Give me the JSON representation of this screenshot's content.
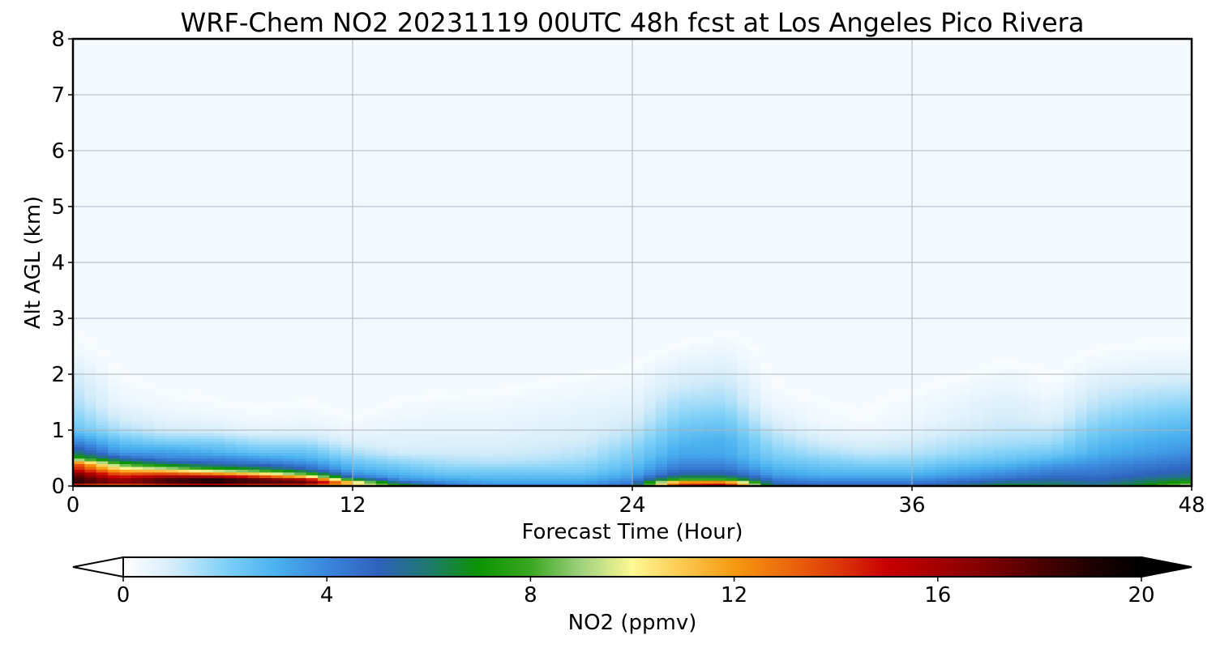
{
  "chart_data": {
    "type": "heatmap",
    "title": "WRF-Chem NO2  20231119 00UTC 48h fcst at Los Angeles Pico Rivera",
    "xlabel": "Forecast Time (Hour)",
    "ylabel": "Alt AGL (km)",
    "xlim": [
      0,
      48
    ],
    "ylim": [
      0,
      8
    ],
    "x_ticks": [
      "0",
      "12",
      "24",
      "36",
      "48"
    ],
    "y_ticks": [
      "0",
      "1",
      "2",
      "3",
      "4",
      "5",
      "6",
      "7",
      "8"
    ],
    "grid": true,
    "colorbar": {
      "label": "NO2  (ppmv)",
      "range": [
        0,
        20
      ],
      "ticks": [
        "0",
        "4",
        "8",
        "12",
        "16",
        "20"
      ],
      "extend": "both",
      "stops": [
        {
          "value": 0,
          "color": "#ffffff"
        },
        {
          "value": 1,
          "color": "#d3ecfa"
        },
        {
          "value": 2,
          "color": "#7fd0f7"
        },
        {
          "value": 3,
          "color": "#4ab1ef"
        },
        {
          "value": 4,
          "color": "#3a86dc"
        },
        {
          "value": 5,
          "color": "#2e62bd"
        },
        {
          "value": 6,
          "color": "#1f7a6e"
        },
        {
          "value": 7,
          "color": "#0c9400"
        },
        {
          "value": 8,
          "color": "#3aa722"
        },
        {
          "value": 9,
          "color": "#9fd27d"
        },
        {
          "value": 10,
          "color": "#fff895"
        },
        {
          "value": 11,
          "color": "#fbc84e"
        },
        {
          "value": 12,
          "color": "#f69a10"
        },
        {
          "value": 13,
          "color": "#ec6a0c"
        },
        {
          "value": 14,
          "color": "#de3a08"
        },
        {
          "value": 15,
          "color": "#c80000"
        },
        {
          "value": 16,
          "color": "#a40000"
        },
        {
          "value": 17,
          "color": "#7c0000"
        },
        {
          "value": 18,
          "color": "#4c0000"
        },
        {
          "value": 19,
          "color": "#200000"
        },
        {
          "value": 20,
          "color": "#000000"
        }
      ]
    },
    "field": {
      "times": [
        0,
        2,
        4,
        6,
        8,
        10,
        12,
        14,
        16,
        18,
        20,
        22,
        24,
        26,
        28,
        30,
        32,
        34,
        36,
        38,
        40,
        42,
        44,
        46,
        48
      ],
      "altitudes": [
        0,
        0.05,
        0.1,
        0.15,
        0.2,
        0.3,
        0.4,
        0.5,
        0.6,
        0.8,
        1.0,
        1.2,
        1.5,
        1.8,
        2.1,
        2.4,
        2.7,
        3.0
      ],
      "values": [
        [
          11,
          18,
          19.5,
          18,
          18,
          15,
          14,
          8,
          6,
          4,
          2.5,
          2,
          1.5,
          1.2,
          0.8,
          0.4,
          0.2,
          0
        ],
        [
          11,
          16,
          17,
          15,
          14,
          11,
          8,
          5,
          3.5,
          2.5,
          1.5,
          1,
          0.5,
          0.3,
          0.1,
          0,
          0,
          0
        ],
        [
          12,
          17,
          19,
          17,
          15,
          10,
          6,
          4,
          3.5,
          2,
          1,
          0.6,
          0.3,
          0.1,
          0,
          0,
          0,
          0
        ],
        [
          12,
          18,
          20,
          18,
          14,
          8,
          5,
          4,
          3,
          2,
          0.9,
          0.5,
          0.2,
          0,
          0,
          0,
          0,
          0
        ],
        [
          12,
          17,
          19,
          16,
          12,
          7,
          4.5,
          3.5,
          2.5,
          1.5,
          0.6,
          0.3,
          0.1,
          0,
          0,
          0,
          0,
          0
        ],
        [
          12,
          17,
          18,
          13,
          9,
          5,
          4,
          3,
          2.5,
          1.5,
          0.7,
          0.4,
          0.2,
          0,
          0,
          0,
          0,
          0
        ],
        [
          10,
          12,
          9,
          5,
          4,
          3,
          2.5,
          2,
          1.5,
          0.8,
          0.4,
          0.2,
          0,
          0,
          0,
          0,
          0,
          0
        ],
        [
          8,
          6,
          4,
          3.5,
          3,
          2.5,
          2,
          1.5,
          1,
          0.7,
          0.6,
          0.4,
          0.2,
          0,
          0,
          0,
          0,
          0
        ],
        [
          5,
          4,
          3.5,
          3,
          2.5,
          2,
          1.6,
          1.3,
          1,
          0.8,
          0.6,
          0.5,
          0.3,
          0,
          0,
          0,
          0,
          0
        ],
        [
          4,
          3.5,
          3,
          2.8,
          2.5,
          2,
          1.5,
          1.2,
          1,
          0.8,
          0.6,
          0.5,
          0.3,
          0.1,
          0,
          0,
          0,
          0
        ],
        [
          4,
          3.5,
          3,
          2.8,
          2.5,
          2,
          1.6,
          1.3,
          1.1,
          0.9,
          0.7,
          0.6,
          0.4,
          0.2,
          0,
          0,
          0,
          0
        ],
        [
          4,
          3.5,
          3,
          2.8,
          2.5,
          2,
          1.8,
          1.5,
          1.3,
          1,
          0.8,
          0.7,
          0.5,
          0.3,
          0.1,
          0,
          0,
          0
        ],
        [
          5,
          4.5,
          4,
          3.6,
          3.2,
          2.8,
          2.5,
          2.2,
          2,
          1.6,
          1.2,
          0.9,
          0.6,
          0.4,
          0.2,
          0,
          0,
          0
        ],
        [
          13,
          15,
          9,
          7,
          5.5,
          4.5,
          4,
          3.5,
          3.2,
          2.8,
          2.4,
          2,
          1.5,
          1,
          0.7,
          0.3,
          0,
          0
        ],
        [
          14,
          16,
          9,
          7,
          5.5,
          4.5,
          4,
          3.5,
          3.2,
          3,
          2.6,
          2.2,
          1.6,
          1.2,
          0.8,
          0.5,
          0.2,
          0
        ],
        [
          6,
          5,
          4.5,
          4,
          3.5,
          3,
          2.6,
          2.2,
          2,
          1.6,
          1.2,
          0.8,
          0.4,
          0.2,
          0.1,
          0,
          0,
          0
        ],
        [
          5,
          4.5,
          4,
          3.5,
          3,
          2.6,
          2.2,
          1.9,
          1.5,
          1,
          0.6,
          0.3,
          0.2,
          0,
          0,
          0,
          0,
          0
        ],
        [
          5,
          4.5,
          4,
          3.5,
          3,
          2.5,
          2,
          1.6,
          1.2,
          0.8,
          0.4,
          0.2,
          0.1,
          0,
          0,
          0,
          0,
          0
        ],
        [
          5,
          4.5,
          4,
          3.5,
          3,
          2.5,
          2,
          1.7,
          1.3,
          1,
          0.6,
          0.4,
          0.3,
          0.1,
          0,
          0,
          0,
          0
        ],
        [
          6,
          5,
          4.5,
          4,
          3.5,
          3,
          2.5,
          2,
          1.7,
          1.3,
          1,
          0.7,
          0.5,
          0.3,
          0,
          0,
          0,
          0
        ],
        [
          7,
          6,
          5,
          4.5,
          4,
          3.4,
          2.8,
          2.3,
          2,
          1.5,
          1.2,
          1,
          0.8,
          0.5,
          0.3,
          0,
          0,
          0
        ],
        [
          6.5,
          6,
          5.5,
          5,
          4.5,
          4,
          3.4,
          2.7,
          2.2,
          1.6,
          1.2,
          0.8,
          0.5,
          0.2,
          0.1,
          0,
          0,
          0
        ],
        [
          6,
          5.5,
          5,
          4.8,
          4.5,
          4.2,
          3.8,
          3.4,
          3,
          2.6,
          2.2,
          1.8,
          1.3,
          0.9,
          0.5,
          0.2,
          0,
          0
        ],
        [
          7,
          6.5,
          6,
          5.5,
          5,
          4.6,
          4.2,
          3.8,
          3.4,
          3,
          2.6,
          2.2,
          1.6,
          1.1,
          0.6,
          0.3,
          0.1,
          0
        ],
        [
          10,
          8,
          7,
          6,
          5.5,
          5,
          4.6,
          4.2,
          3.8,
          3.3,
          2.9,
          2.5,
          1.8,
          1.2,
          0.6,
          0.3,
          0.1,
          0
        ]
      ]
    }
  }
}
